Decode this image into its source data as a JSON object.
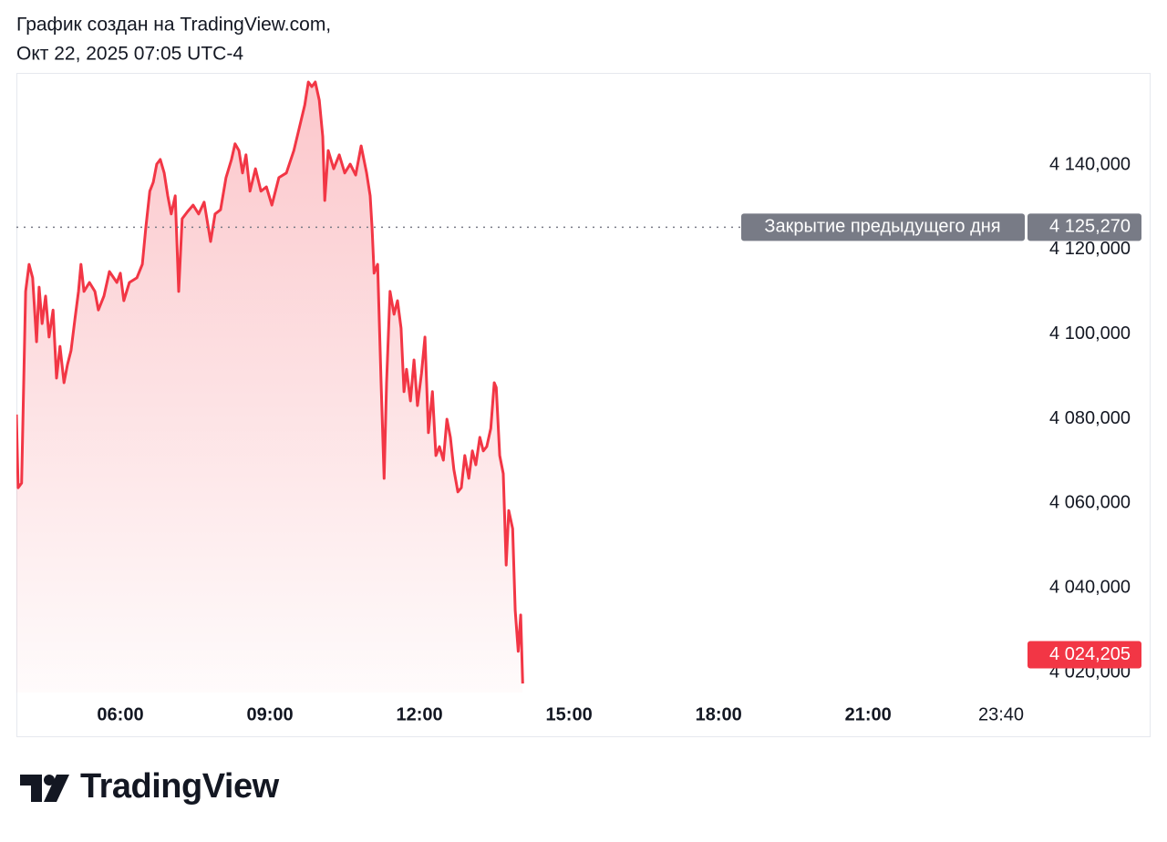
{
  "header": {
    "line1": "График создан на TradingView.com,",
    "line2": "Окт 22, 2025 07:05 UTC-4"
  },
  "brand": "TradingView",
  "chart_data": {
    "type": "area",
    "color": "#f23645",
    "xlim": [
      3.915,
      24.16
    ],
    "ylim": [
      4015260,
      4161760
    ],
    "xticks": [
      {
        "value": 6,
        "label": "06:00"
      },
      {
        "value": 9,
        "label": "09:00"
      },
      {
        "value": 12,
        "label": "12:00"
      },
      {
        "value": 15,
        "label": "15:00"
      },
      {
        "value": 18,
        "label": "18:00"
      },
      {
        "value": 21,
        "label": "21:00"
      },
      {
        "value": 23.667,
        "label": "23:40"
      }
    ],
    "yticks": [
      {
        "value": 4020000,
        "label": "4 020,000"
      },
      {
        "value": 4040000,
        "label": "4 040,000"
      },
      {
        "value": 4060000,
        "label": "4 060,000"
      },
      {
        "value": 4080000,
        "label": "4 080,000"
      },
      {
        "value": 4100000,
        "label": "4 100,000"
      },
      {
        "value": 4120000,
        "label": "4 120,000"
      },
      {
        "value": 4140000,
        "label": "4 140,000"
      }
    ],
    "previous_close": {
      "label": "Закрытие предыдущего дня",
      "value": 4125270,
      "value_label": "4 125,270",
      "color": "#787b86"
    },
    "last_price": {
      "value": 4024205,
      "value_label": "4 024,205"
    },
    "x": [
      3.915,
      3.95,
      4.02,
      4.1,
      4.17,
      4.24,
      4.32,
      4.37,
      4.43,
      4.5,
      4.57,
      4.65,
      4.72,
      4.79,
      4.87,
      4.94,
      5.01,
      5.09,
      5.16,
      5.21,
      5.27,
      5.38,
      5.49,
      5.56,
      5.67,
      5.78,
      5.93,
      6.0,
      6.07,
      6.18,
      6.33,
      6.44,
      6.51,
      6.59,
      6.66,
      6.73,
      6.8,
      6.88,
      6.95,
      7.02,
      7.1,
      7.17,
      7.24,
      7.35,
      7.46,
      7.57,
      7.68,
      7.81,
      7.9,
      8.01,
      8.12,
      8.23,
      8.3,
      8.38,
      8.45,
      8.52,
      8.6,
      8.71,
      8.82,
      8.93,
      9.04,
      9.18,
      9.33,
      9.48,
      9.59,
      9.7,
      9.77,
      9.84,
      9.91,
      9.99,
      10.06,
      10.1,
      10.17,
      10.28,
      10.39,
      10.5,
      10.61,
      10.72,
      10.83,
      10.94,
      11.01,
      11.05,
      11.09,
      11.16,
      11.23,
      11.29,
      11.34,
      11.41,
      11.49,
      11.56,
      11.63,
      11.69,
      11.74,
      11.82,
      11.89,
      11.96,
      12.04,
      12.11,
      12.18,
      12.26,
      12.33,
      12.4,
      12.48,
      12.55,
      12.62,
      12.69,
      12.77,
      12.84,
      12.91,
      12.99,
      13.06,
      13.13,
      13.21,
      13.28,
      13.35,
      13.43,
      13.5,
      13.54,
      13.61,
      13.68,
      13.74,
      13.79,
      13.87,
      13.92,
      13.98,
      14.03,
      14.07
    ],
    "values": [
      4081000,
      4063700,
      4064800,
      4110100,
      4116500,
      4113300,
      4098200,
      4111100,
      4102500,
      4109000,
      4099300,
      4105700,
      4089600,
      4097100,
      4088500,
      4092800,
      4096100,
      4103600,
      4110100,
      4116500,
      4110100,
      4112200,
      4110100,
      4105700,
      4109000,
      4114800,
      4112200,
      4114400,
      4107900,
      4112200,
      4113300,
      4116500,
      4125100,
      4133800,
      4135900,
      4140200,
      4141300,
      4138100,
      4132700,
      4128400,
      4132700,
      4110100,
      4127300,
      4129000,
      4130500,
      4128400,
      4131200,
      4121900,
      4128400,
      4129400,
      4137000,
      4141300,
      4145000,
      4143400,
      4138100,
      4142400,
      4133800,
      4139100,
      4133800,
      4134800,
      4130500,
      4137000,
      4138100,
      4143400,
      4148800,
      4154200,
      4159600,
      4158500,
      4159600,
      4155300,
      4146700,
      4131600,
      4143400,
      4139100,
      4142400,
      4138100,
      4140200,
      4137600,
      4144500,
      4138100,
      4132700,
      4125100,
      4114400,
      4116500,
      4088500,
      4065900,
      4088500,
      4110100,
      4104700,
      4107900,
      4101400,
      4086400,
      4091700,
      4084200,
      4093900,
      4083100,
      4090700,
      4099300,
      4076700,
      4086400,
      4071300,
      4073400,
      4070200,
      4079900,
      4075600,
      4068000,
      4062700,
      4063700,
      4071300,
      4065900,
      4072400,
      4069100,
      4075600,
      4072400,
      4073400,
      4077700,
      4088500,
      4087400,
      4071300,
      4067000,
      4045400,
      4058300,
      4054000,
      4034700,
      4025000,
      4033600,
      4017400
    ]
  }
}
